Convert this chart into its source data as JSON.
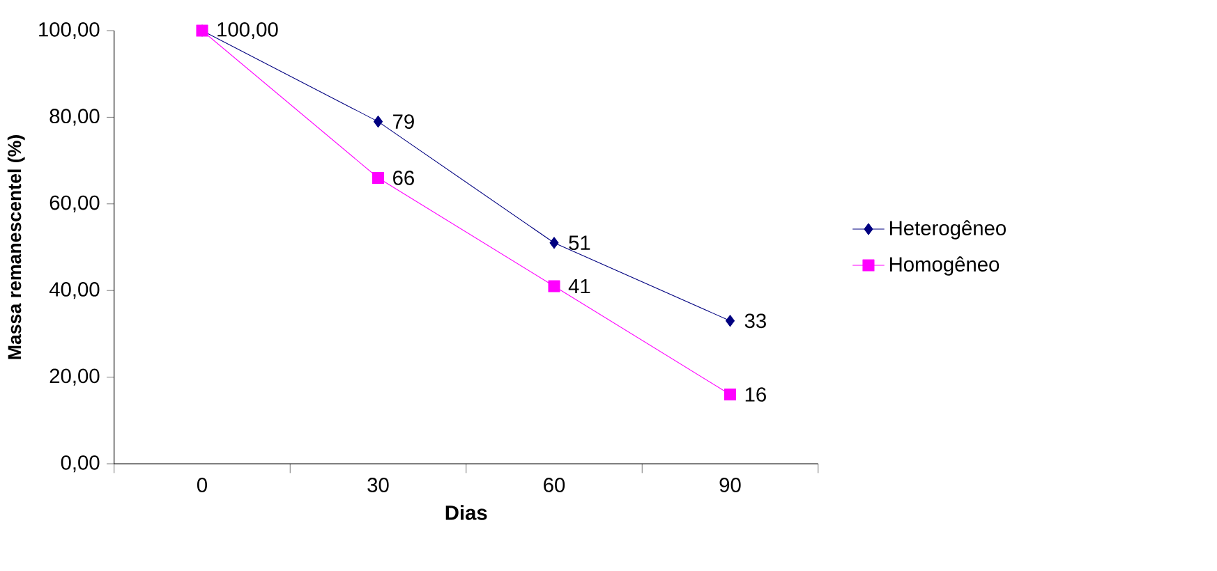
{
  "chart_data": {
    "type": "line",
    "xlabel": "Dias",
    "ylabel": "Massa remanescentel (%)",
    "categories": [
      "0",
      "30",
      "60",
      "90"
    ],
    "ylim": [
      0,
      100
    ],
    "yticks": [
      {
        "value": 0,
        "label": "0,00"
      },
      {
        "value": 20,
        "label": "20,00"
      },
      {
        "value": 40,
        "label": "40,00"
      },
      {
        "value": 60,
        "label": "60,00"
      },
      {
        "value": 80,
        "label": "80,00"
      },
      {
        "value": 100,
        "label": "100,00"
      }
    ],
    "grid": false,
    "legend": "right",
    "series": [
      {
        "name": "Heterogêneo",
        "color": "#000080",
        "marker": "diamond",
        "values": [
          100,
          79,
          51,
          33
        ],
        "value_labels": [
          "100,00",
          "79",
          "51",
          "33"
        ]
      },
      {
        "name": "Homogêneo",
        "color": "#ff00ff",
        "marker": "square",
        "values": [
          100,
          66,
          41,
          16
        ],
        "value_labels": [
          null,
          "66",
          "41",
          "16"
        ]
      }
    ]
  }
}
